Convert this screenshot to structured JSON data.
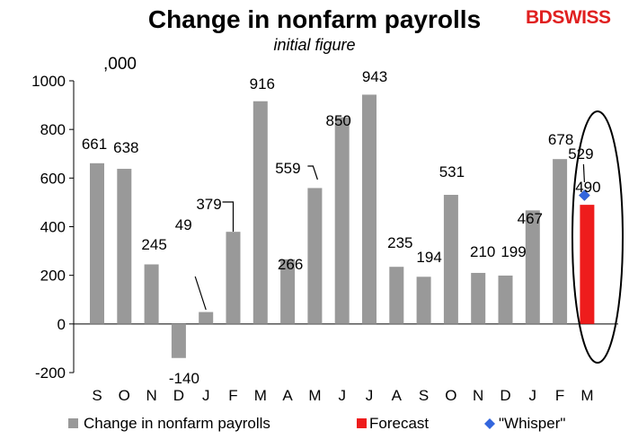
{
  "brand": {
    "name": "BDSWISS",
    "color": "#e02020"
  },
  "chart_data": {
    "type": "bar",
    "title": "Change in nonfarm payrolls",
    "subtitle": "initial figure",
    "unit_label": ",000",
    "xlabel": "",
    "ylabel": "",
    "ylim": [
      -200,
      1000
    ],
    "yticks": [
      -200,
      0,
      200,
      400,
      600,
      800,
      1000
    ],
    "grid": false,
    "categories": [
      "S",
      "O",
      "N",
      "D",
      "J",
      "F",
      "M",
      "A",
      "M",
      "J",
      "J",
      "A",
      "S",
      "O",
      "N",
      "D",
      "J",
      "F",
      "M"
    ],
    "series": [
      {
        "name": "Change in nonfarm payrolls",
        "color": "#999999",
        "values": [
          661,
          638,
          245,
          -140,
          49,
          379,
          916,
          266,
          559,
          850,
          943,
          235,
          194,
          531,
          210,
          199,
          467,
          678,
          null
        ]
      },
      {
        "name": "Forecast",
        "color": "#ee1c1c",
        "values": [
          null,
          null,
          null,
          null,
          null,
          null,
          null,
          null,
          null,
          null,
          null,
          null,
          null,
          null,
          null,
          null,
          null,
          null,
          490
        ]
      },
      {
        "name": "\"Whisper\"",
        "color": "#3366dd",
        "marker": "diamond",
        "values": [
          null,
          null,
          null,
          null,
          null,
          null,
          null,
          null,
          null,
          null,
          null,
          null,
          null,
          null,
          null,
          null,
          null,
          null,
          529
        ]
      }
    ],
    "data_labels": [
      "661",
      "638",
      "245",
      "-140",
      "49",
      "379",
      "916",
      "266",
      "559",
      "850",
      "943",
      "235",
      "194",
      "531",
      "210",
      "199",
      "467",
      "678",
      "529",
      "490"
    ],
    "legend_position": "bottom",
    "annotation": "ellipse highlighting the final month forecast"
  }
}
